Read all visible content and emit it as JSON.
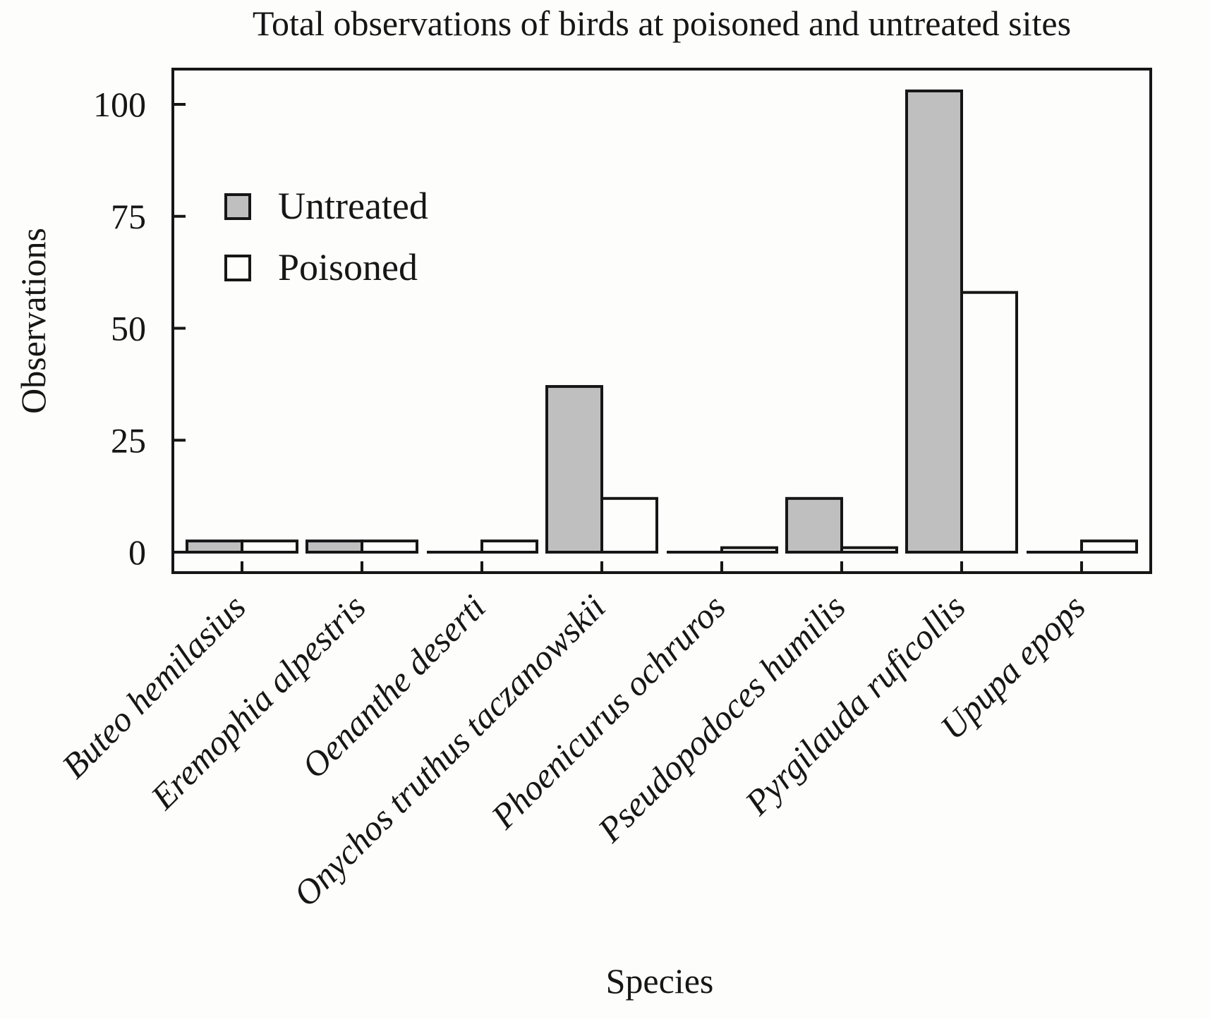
{
  "chart_data": {
    "type": "bar",
    "title": "Total observations of birds at poisoned and untreated sites",
    "xlabel": "Species",
    "ylabel": "Observations",
    "ylim": [
      -4.5,
      107
    ],
    "yticks": [
      0,
      25,
      50,
      75,
      100
    ],
    "ytick_labels": [
      "0",
      "25",
      "50",
      "75",
      "100"
    ],
    "grid": false,
    "legend_position": "top-left",
    "categories": [
      "Buteo hemilasius",
      "Eremophia alpestris",
      "Oenanthe deserti",
      "Onychos truthus taczanowskii",
      "Phoenicurus ochruros",
      "Pseudopodoces humilis",
      "Pyrgilauda ruficollis",
      "Upupa epops"
    ],
    "series": [
      {
        "name": "Untreated",
        "color": "#bfbfbf",
        "values": [
          2.5,
          2.5,
          0,
          37,
          0,
          12,
          103,
          0
        ]
      },
      {
        "name": "Poisoned",
        "color": "#fdfdfc",
        "values": [
          2.5,
          2.5,
          2.5,
          12,
          1,
          1,
          58,
          2.5
        ]
      }
    ],
    "stroke_color": "#161616"
  }
}
